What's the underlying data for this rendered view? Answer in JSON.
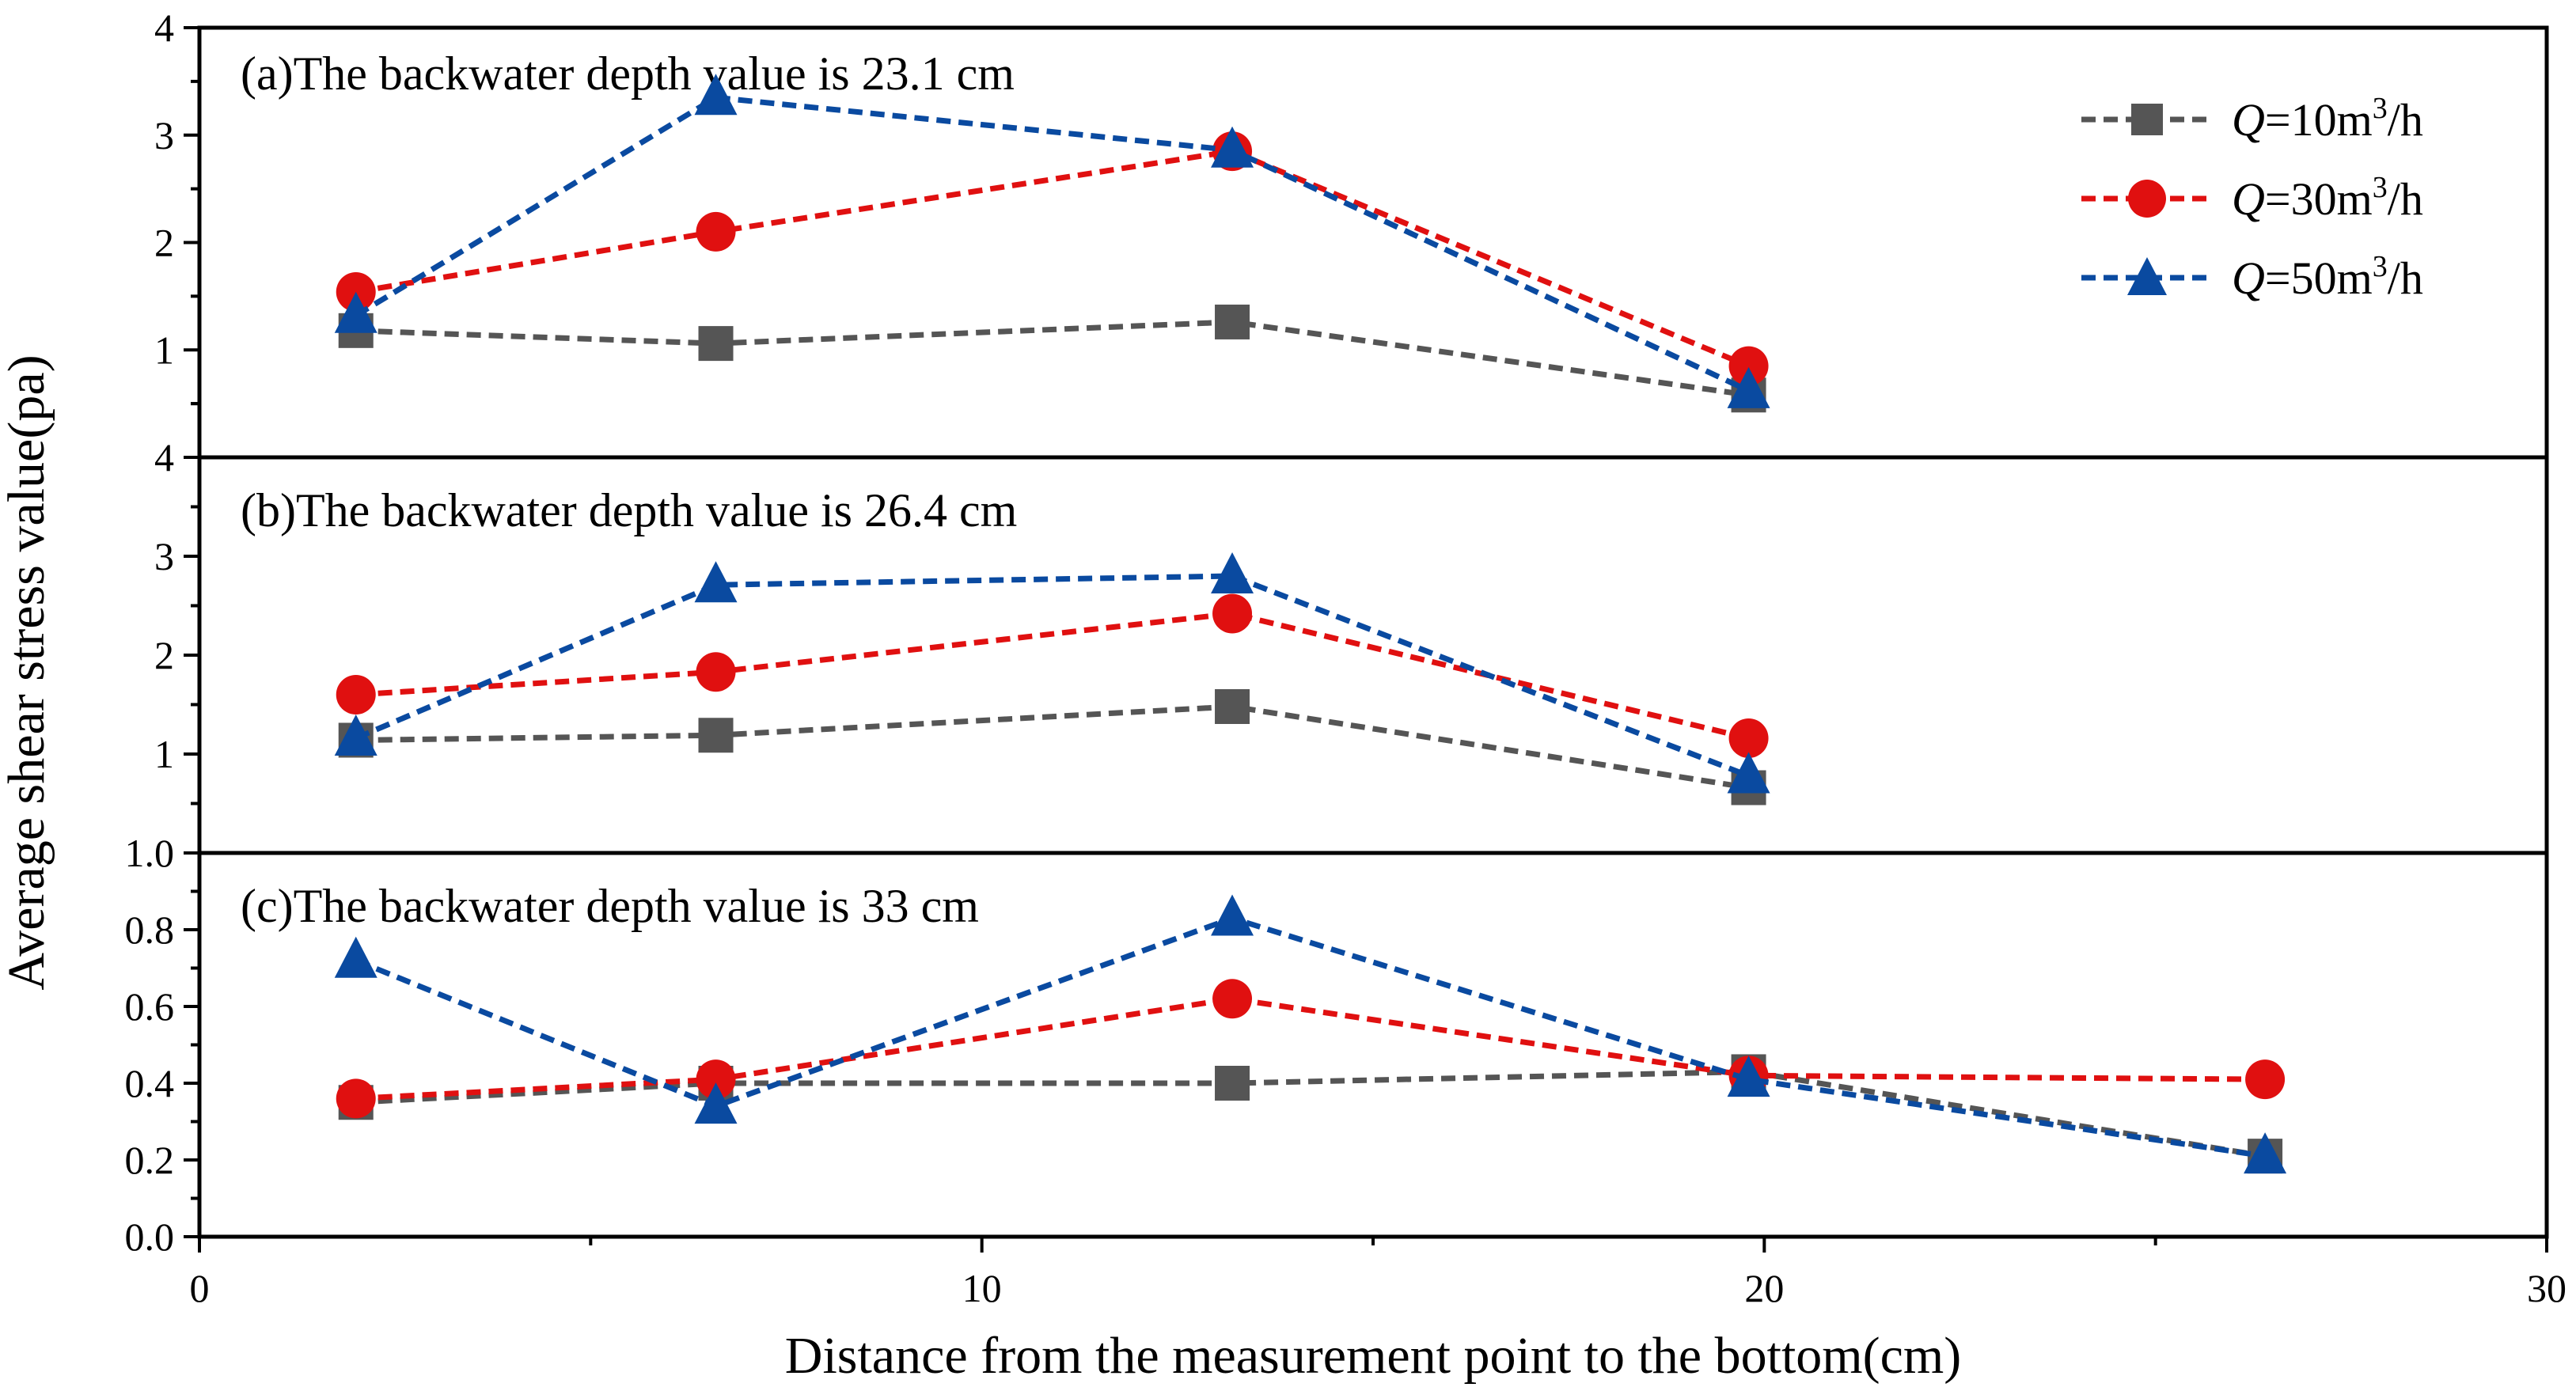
{
  "chart_data": {
    "type": "line",
    "xlabel": "Distance from the measurement point to the bottom(cm)",
    "ylabel": "Average shear stress value(pa)",
    "xlim": [
      0,
      30
    ],
    "xticks": [
      0,
      10,
      20,
      30
    ],
    "legend": {
      "placement": "top-right",
      "entries": [
        {
          "prefix": "Q",
          "mid": "=10m",
          "sup": "3",
          "suffix": "/h"
        },
        {
          "prefix": "Q",
          "mid": "=30m",
          "sup": "3",
          "suffix": "/h"
        },
        {
          "prefix": "Q",
          "mid": "=50m",
          "sup": "3",
          "suffix": "/h"
        }
      ]
    },
    "series_styles": [
      {
        "name": "Q=10m3/h",
        "color": "#555555",
        "marker": "square"
      },
      {
        "name": "Q=30m3/h",
        "color": "#e01010",
        "marker": "circle"
      },
      {
        "name": "Q=50m3/h",
        "color": "#0a4aa0",
        "marker": "triangle"
      }
    ],
    "panels": [
      {
        "id": "a",
        "title": "(a)The backwater depth value is 23.1 cm",
        "ylim": [
          0,
          4
        ],
        "yticks": [
          "4",
          "3",
          "2",
          "1"
        ],
        "ytick_values": [
          4,
          3,
          2,
          1
        ],
        "series": [
          {
            "name": "Q=10m3/h",
            "x": [
              2,
              6.6,
              13.2,
              19.8
            ],
            "y": [
              1.18,
              1.06,
              1.26,
              0.58
            ]
          },
          {
            "name": "Q=30m3/h",
            "x": [
              2,
              6.6,
              13.2,
              19.8
            ],
            "y": [
              1.54,
              2.1,
              2.85,
              0.85
            ]
          },
          {
            "name": "Q=50m3/h",
            "x": [
              2,
              6.6,
              13.2,
              19.8
            ],
            "y": [
              1.32,
              3.35,
              2.86,
              0.62
            ]
          }
        ]
      },
      {
        "id": "b",
        "title": "(b)The backwater depth value is 26.4 cm",
        "ylim": [
          0,
          4
        ],
        "yticks": [
          "4",
          "3",
          "2",
          "1"
        ],
        "ytick_values": [
          4,
          3,
          2,
          1
        ],
        "series": [
          {
            "name": "Q=10m3/h",
            "x": [
              2,
              6.6,
              13.2,
              19.8
            ],
            "y": [
              1.14,
              1.19,
              1.48,
              0.66
            ]
          },
          {
            "name": "Q=30m3/h",
            "x": [
              2,
              6.6,
              13.2,
              19.8
            ],
            "y": [
              1.6,
              1.83,
              2.42,
              1.16
            ]
          },
          {
            "name": "Q=50m3/h",
            "x": [
              2,
              6.6,
              13.2,
              19.8
            ],
            "y": [
              1.16,
              2.71,
              2.8,
              0.78
            ]
          }
        ]
      },
      {
        "id": "c",
        "title": "(c)The backwater depth value is 33 cm",
        "ylim": [
          0,
          1.0
        ],
        "yticks": [
          "1.0",
          "0.8",
          "0.6",
          "0.4",
          "0.2",
          "0.0"
        ],
        "ytick_values": [
          1.0,
          0.8,
          0.6,
          0.4,
          0.2,
          0.0
        ],
        "series": [
          {
            "name": "Q=10m3/h",
            "x": [
              2,
              6.6,
              13.2,
              19.8,
              26.4
            ],
            "y": [
              0.35,
              0.4,
              0.4,
              0.43,
              0.21
            ]
          },
          {
            "name": "Q=30m3/h",
            "x": [
              2,
              6.6,
              13.2,
              19.8,
              26.4
            ],
            "y": [
              0.36,
              0.41,
              0.62,
              0.42,
              0.41
            ]
          },
          {
            "name": "Q=50m3/h",
            "x": [
              2,
              6.6,
              13.2,
              19.8,
              26.4
            ],
            "y": [
              0.72,
              0.34,
              0.83,
              0.41,
              0.21
            ]
          }
        ]
      }
    ]
  }
}
